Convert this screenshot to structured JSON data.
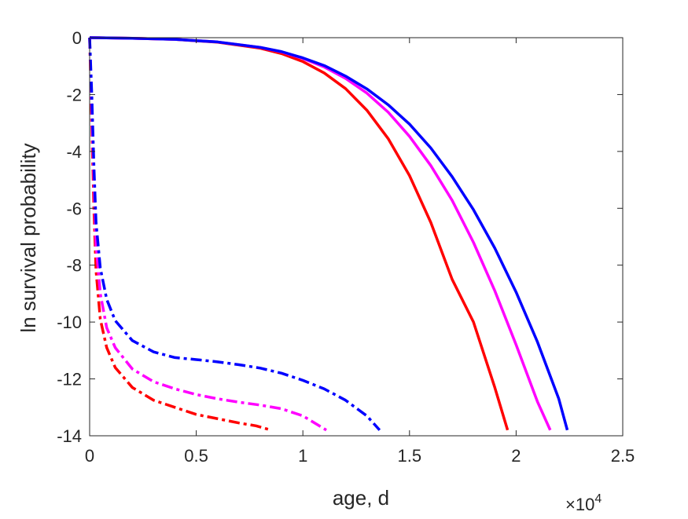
{
  "chart_data": {
    "type": "line",
    "title": "",
    "xlabel": "age, d",
    "ylabel": "ln survival probability",
    "x_exponent_label": "×10",
    "x_exponent_power": "4",
    "x_scale": 10000,
    "xlim": [
      0,
      25000
    ],
    "ylim": [
      -14,
      0
    ],
    "x_ticks": [
      0,
      5000,
      10000,
      15000,
      20000,
      25000
    ],
    "x_tick_labels": [
      "0",
      "0.5",
      "1",
      "1.5",
      "2",
      "2.5"
    ],
    "y_ticks": [
      0,
      -2,
      -4,
      -6,
      -8,
      -10,
      -12,
      -14
    ],
    "y_tick_labels": [
      "0",
      "-2",
      "-4",
      "-6",
      "-8",
      "-10",
      "-12",
      "-14"
    ],
    "grid": false,
    "legend": "none",
    "series": [
      {
        "color": "#ff0000",
        "style": "solid",
        "x": [
          0,
          2000,
          4000,
          6000,
          8000,
          9000,
          10000,
          11000,
          12000,
          13000,
          14000,
          15000,
          16000,
          17000,
          18000,
          19000,
          19600
        ],
        "y": [
          0,
          -0.02,
          -0.06,
          -0.16,
          -0.37,
          -0.56,
          -0.84,
          -1.24,
          -1.79,
          -2.55,
          -3.55,
          -4.85,
          -6.5,
          -8.5,
          -10.0,
          -12.3,
          -13.8
        ]
      },
      {
        "color": "#ff00ff",
        "style": "solid",
        "x": [
          0,
          2000,
          4000,
          6000,
          8000,
          9000,
          10000,
          11000,
          12000,
          13000,
          14000,
          15000,
          16000,
          17000,
          18000,
          19000,
          20000,
          21000,
          21600
        ],
        "y": [
          0,
          -0.02,
          -0.06,
          -0.15,
          -0.34,
          -0.5,
          -0.73,
          -1.03,
          -1.43,
          -1.95,
          -2.62,
          -3.47,
          -4.5,
          -5.72,
          -7.2,
          -8.9,
          -10.8,
          -12.8,
          -13.8
        ]
      },
      {
        "color": "#0000ff",
        "style": "solid",
        "x": [
          0,
          2000,
          4000,
          6000,
          8000,
          9000,
          10000,
          11000,
          12000,
          13000,
          14000,
          15000,
          16000,
          17000,
          18000,
          19000,
          20000,
          21000,
          22000,
          22400
        ],
        "y": [
          0,
          -0.02,
          -0.06,
          -0.15,
          -0.34,
          -0.49,
          -0.71,
          -0.98,
          -1.35,
          -1.8,
          -2.36,
          -3.04,
          -3.88,
          -4.89,
          -6.05,
          -7.4,
          -8.95,
          -10.7,
          -12.7,
          -13.8
        ]
      },
      {
        "color": "#ff0000",
        "style": "dashdot",
        "x": [
          0,
          100,
          200,
          300,
          500,
          800,
          1200,
          2000,
          3000,
          4000,
          5000,
          6000,
          7000,
          7800,
          8500
        ],
        "y": [
          0,
          -3.0,
          -6.0,
          -8.2,
          -9.9,
          -10.9,
          -11.6,
          -12.3,
          -12.75,
          -13.0,
          -13.25,
          -13.4,
          -13.55,
          -13.65,
          -13.8
        ]
      },
      {
        "color": "#ff00ff",
        "style": "dashdot",
        "x": [
          0,
          100,
          200,
          300,
          500,
          800,
          1200,
          2000,
          3000,
          4000,
          5000,
          6000,
          7000,
          8000,
          9000,
          10000,
          11100
        ],
        "y": [
          0,
          -2.5,
          -5.0,
          -7.3,
          -9.0,
          -10.2,
          -10.9,
          -11.65,
          -12.1,
          -12.35,
          -12.55,
          -12.7,
          -12.82,
          -12.92,
          -13.05,
          -13.3,
          -13.8
        ]
      },
      {
        "color": "#0000ff",
        "style": "dashdot",
        "x": [
          0,
          100,
          200,
          300,
          500,
          800,
          1200,
          2000,
          3000,
          4000,
          5000,
          6000,
          7000,
          8000,
          9000,
          10000,
          11000,
          12000,
          13000,
          13600
        ],
        "y": [
          0,
          -2.0,
          -4.5,
          -6.5,
          -8.1,
          -9.2,
          -9.95,
          -10.65,
          -11.05,
          -11.25,
          -11.32,
          -11.4,
          -11.5,
          -11.62,
          -11.8,
          -12.05,
          -12.35,
          -12.75,
          -13.3,
          -13.8
        ]
      }
    ]
  }
}
